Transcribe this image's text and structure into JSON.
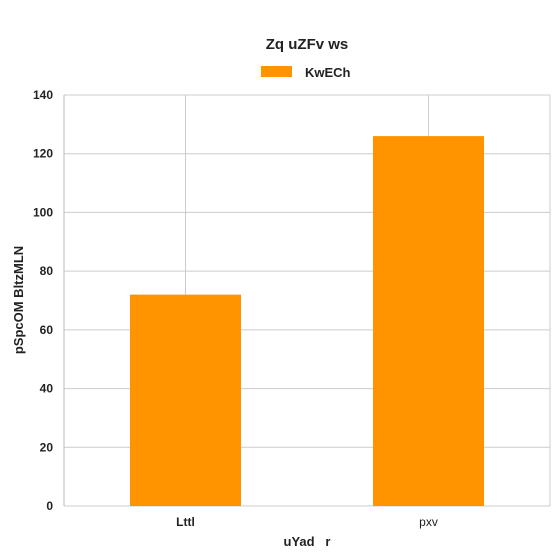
{
  "chart_data": {
    "type": "bar",
    "title": "Zq uZFv ws",
    "xlabel": "uYad   r",
    "ylabel": "pSpcOM BltzMLN",
    "categories": [
      "Lttl",
      "pxv"
    ],
    "series": [
      {
        "name": "KwECh",
        "values": [
          72,
          126
        ],
        "color": "#ff9400"
      }
    ],
    "ylim": [
      0,
      140
    ],
    "yticks": [
      0,
      20,
      40,
      60,
      80,
      100,
      120,
      140
    ],
    "grid": true,
    "legend_position": "top-center"
  },
  "colors": {
    "grid": "#cccccc",
    "axis": "#bbbbbb",
    "bar": "#ff9400"
  }
}
